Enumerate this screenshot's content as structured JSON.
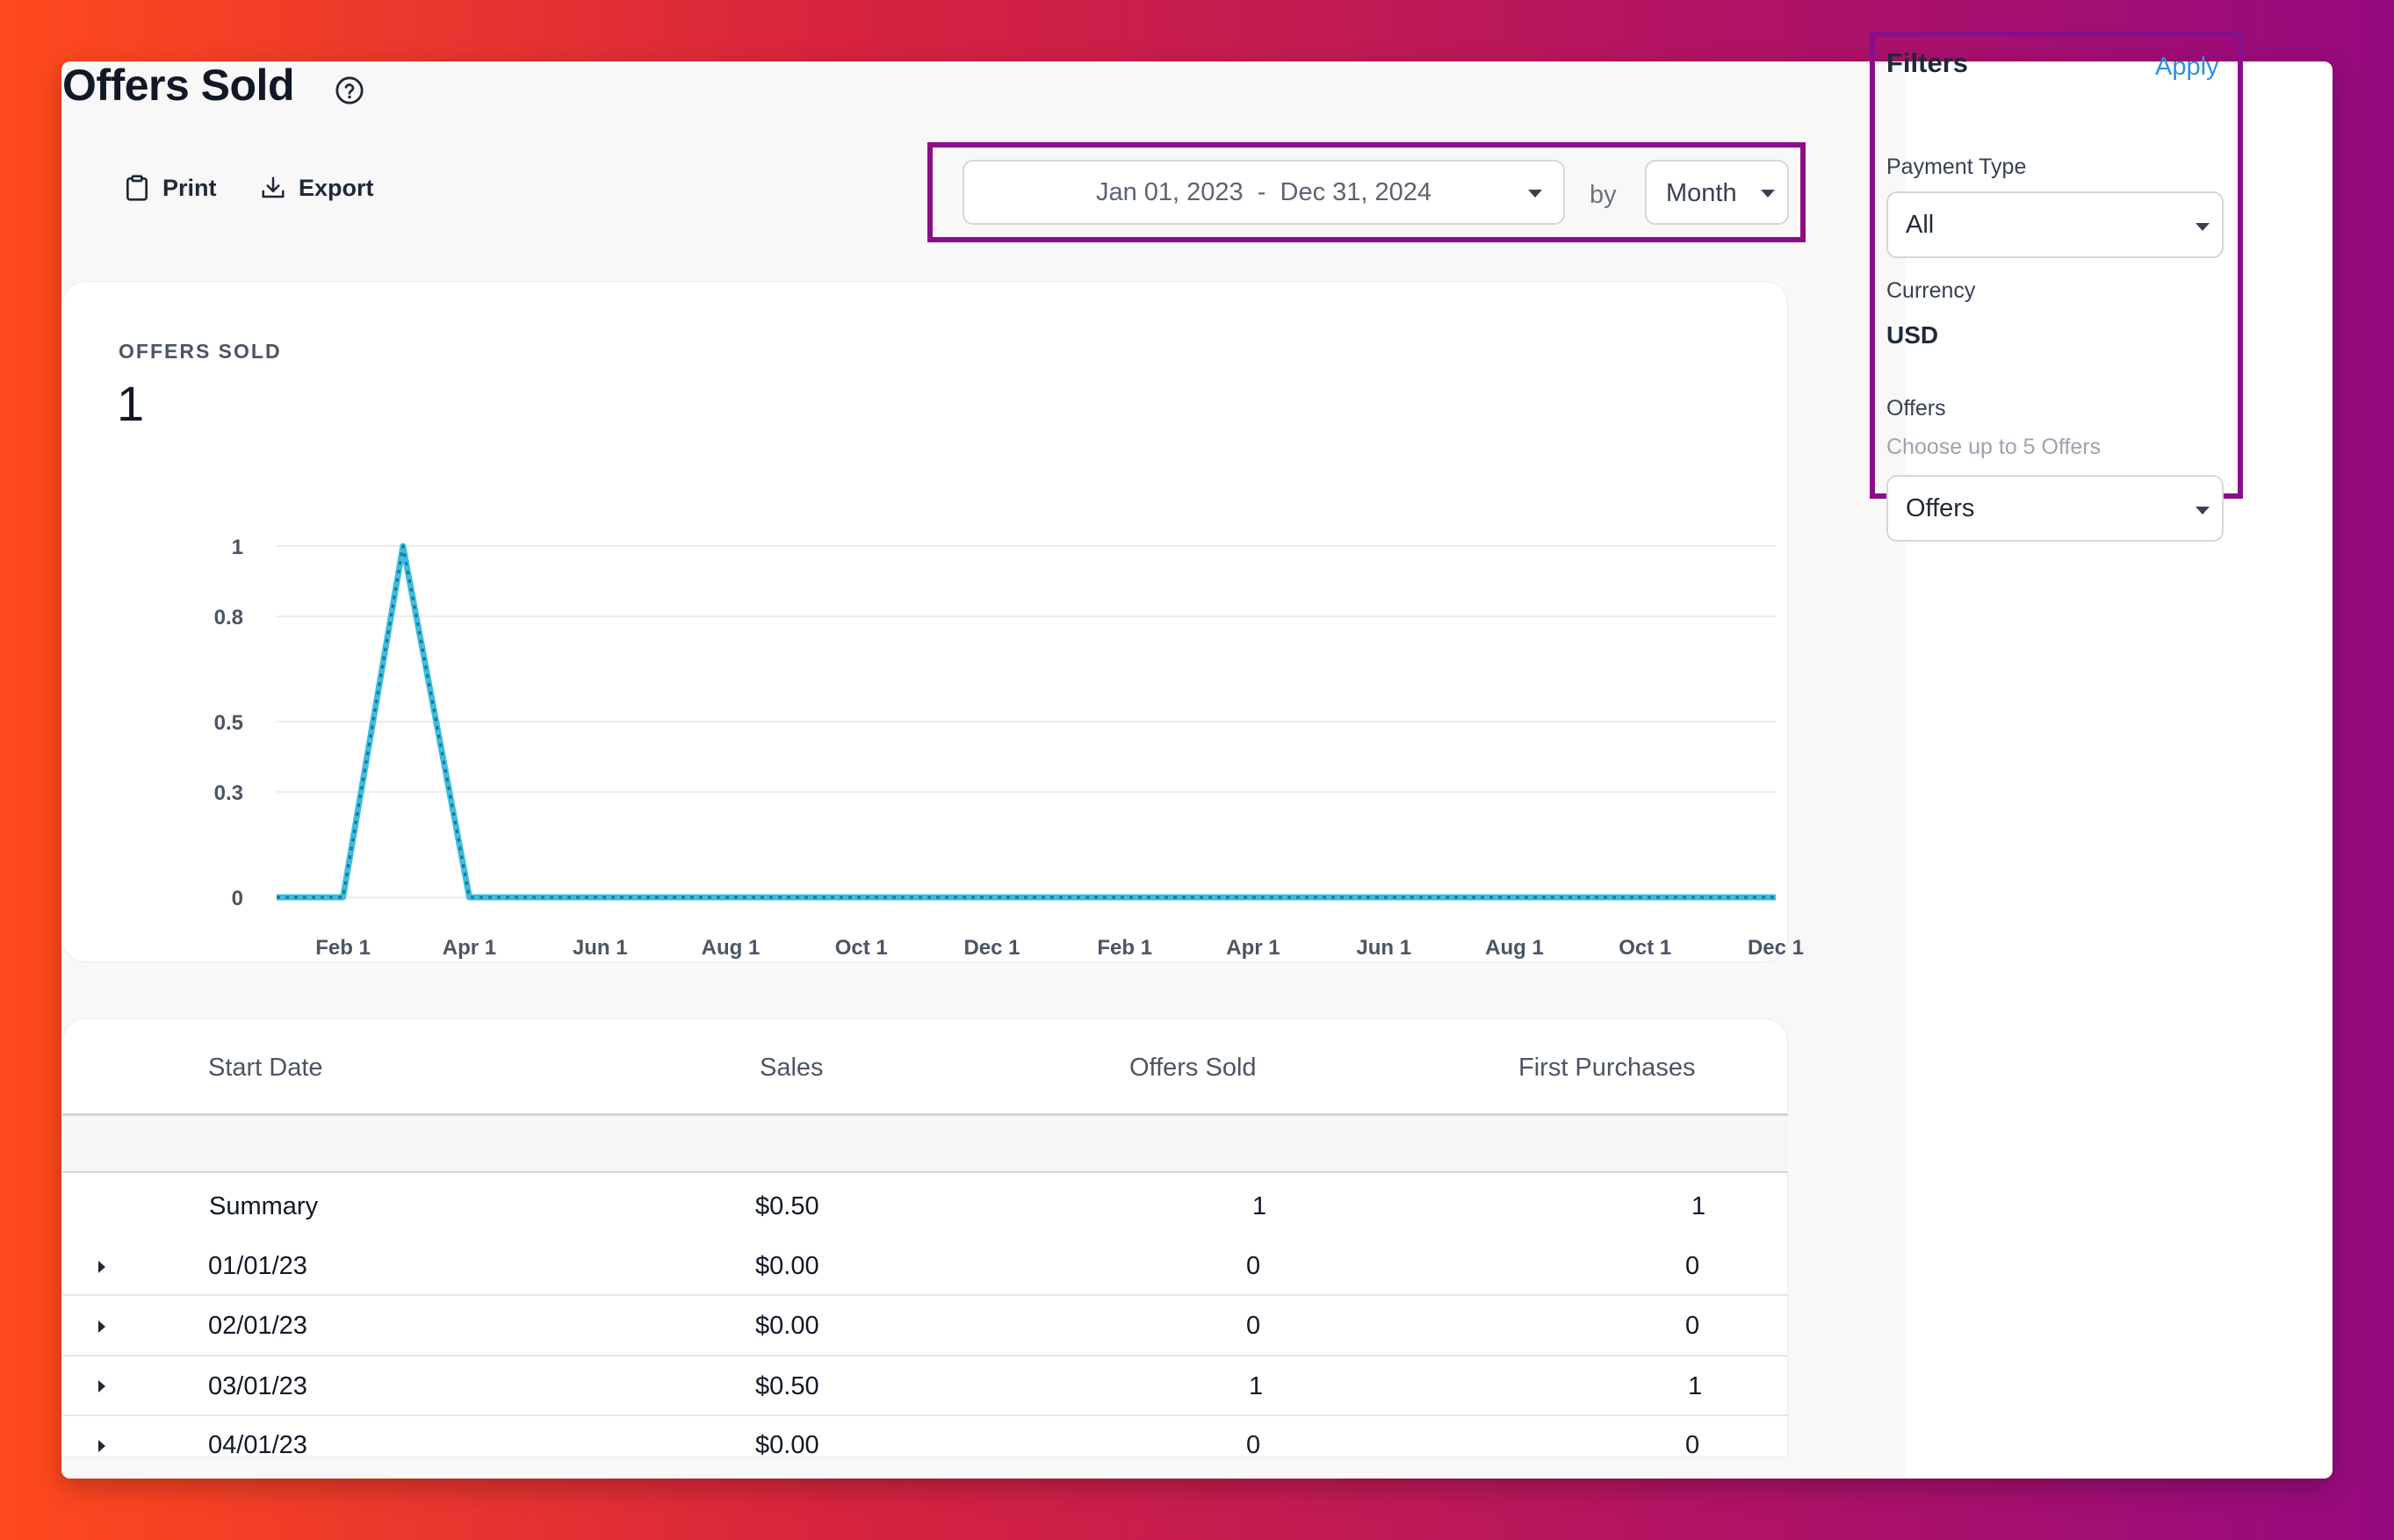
{
  "page": {
    "title": "Offers Sold"
  },
  "toolbar": {
    "print_label": "Print",
    "export_label": "Export"
  },
  "date_range": {
    "value": "Jan 01, 2023  -  Dec 31, 2024",
    "by_label": "by",
    "period": "Month"
  },
  "chart": {
    "label": "OFFERS SOLD",
    "total": "1",
    "line_color": "#3bbfd9",
    "dot_color": "#1e6fa8"
  },
  "chart_data": {
    "type": "line",
    "x": [
      "2023-01-01",
      "2023-02-01",
      "2023-03-01",
      "2023-04-01",
      "2023-05-01",
      "2023-06-01",
      "2023-07-01",
      "2023-08-01",
      "2023-09-01",
      "2023-10-01",
      "2023-11-01",
      "2023-12-01",
      "2024-01-01",
      "2024-02-01",
      "2024-03-01",
      "2024-04-01",
      "2024-05-01",
      "2024-06-01",
      "2024-07-01",
      "2024-08-01",
      "2024-09-01",
      "2024-10-01",
      "2024-11-01",
      "2024-12-01"
    ],
    "series": [
      {
        "values": [
          0,
          0,
          1,
          0,
          0,
          0,
          0,
          0,
          0,
          0,
          0,
          0,
          0,
          0,
          0,
          0,
          0,
          0,
          0,
          0,
          0,
          0,
          0,
          0
        ]
      }
    ],
    "x_tick_labels": [
      "Feb 1",
      "Apr 1",
      "Jun 1",
      "Aug 1",
      "Oct 1",
      "Dec 1",
      "Feb 1",
      "Apr 1",
      "Jun 1",
      "Aug 1",
      "Oct 1",
      "Dec 1"
    ],
    "y_tick_labels": [
      "0",
      "0.3",
      "0.5",
      "0.8",
      "1"
    ],
    "ylim": [
      0,
      1
    ],
    "grid": true
  },
  "table": {
    "headers": [
      "Start Date",
      "Sales",
      "Offers Sold",
      "First Purchases"
    ],
    "summary": {
      "label": "Summary",
      "sales": "$0.50",
      "offers_sold": "1",
      "first_purchases": "1"
    },
    "rows": [
      {
        "date": "01/01/23",
        "sales": "$0.00",
        "offers_sold": "0",
        "first_purchases": "0"
      },
      {
        "date": "02/01/23",
        "sales": "$0.00",
        "offers_sold": "0",
        "first_purchases": "0"
      },
      {
        "date": "03/01/23",
        "sales": "$0.50",
        "offers_sold": "1",
        "first_purchases": "1"
      },
      {
        "date": "04/01/23",
        "sales": "$0.00",
        "offers_sold": "0",
        "first_purchases": "0"
      }
    ]
  },
  "filters": {
    "title": "Filters",
    "apply_label": "Apply",
    "payment_type_label": "Payment Type",
    "payment_type_value": "All",
    "currency_label": "Currency",
    "currency_value": "USD",
    "offers_label": "Offers",
    "offers_hint": "Choose up to 5 Offers",
    "offers_placeholder": "Offers"
  }
}
